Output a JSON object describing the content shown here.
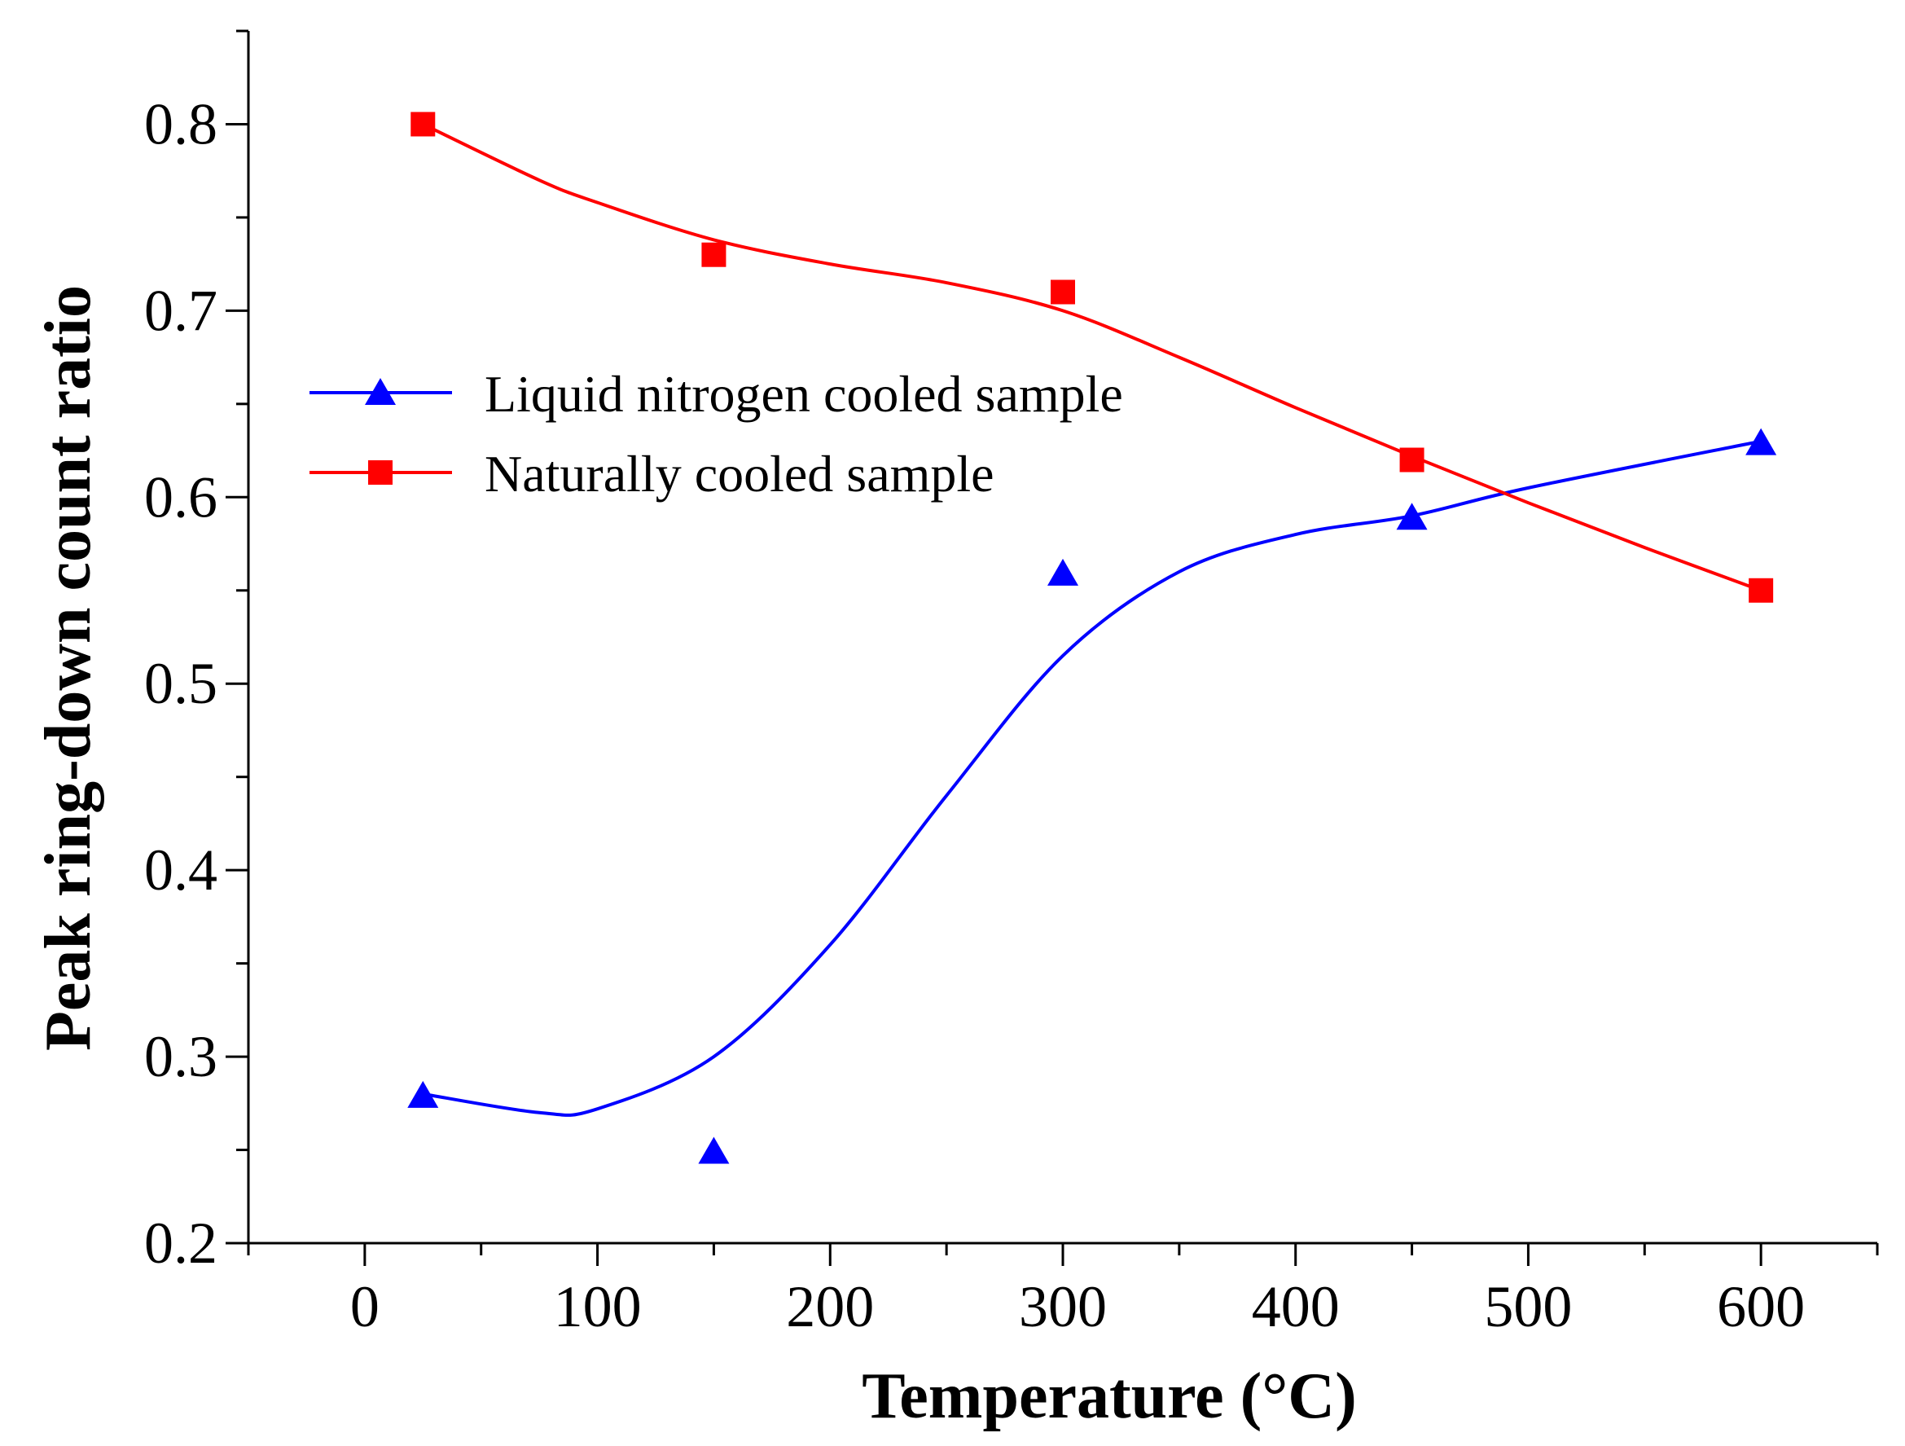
{
  "chart_data": {
    "type": "line",
    "title": "",
    "xlabel": "Temperature (°C)",
    "ylabel": "Peak ring-down count ratio",
    "xlim": [
      -50,
      650
    ],
    "ylim": [
      0.2,
      0.85
    ],
    "xticks": [
      0,
      100,
      200,
      300,
      400,
      500,
      600
    ],
    "xtick_labels": [
      "0",
      "100",
      "200",
      "300",
      "400",
      "500",
      "600"
    ],
    "yticks": [
      0.2,
      0.3,
      0.4,
      0.5,
      0.6,
      0.7,
      0.8
    ],
    "ytick_labels": [
      "0.2",
      "0.3",
      "0.4",
      "0.5",
      "0.6",
      "0.7",
      "0.8"
    ],
    "grid": false,
    "legend_position": "center-left",
    "series": [
      {
        "name": "Liquid nitrogen cooled sample",
        "color": "#0000ff",
        "marker": "triangle",
        "x": [
          25,
          150,
          300,
          450,
          600
        ],
        "y": [
          0.28,
          0.25,
          0.56,
          0.59,
          0.63
        ],
        "fit_curve": [
          [
            25,
            0.28
          ],
          [
            75,
            0.27
          ],
          [
            100,
            0.272
          ],
          [
            150,
            0.3
          ],
          [
            200,
            0.36
          ],
          [
            250,
            0.44
          ],
          [
            300,
            0.515
          ],
          [
            350,
            0.56
          ],
          [
            400,
            0.58
          ],
          [
            450,
            0.59
          ],
          [
            500,
            0.605
          ],
          [
            600,
            0.63
          ]
        ]
      },
      {
        "name": "Naturally cooled sample",
        "color": "#ff0000",
        "marker": "square",
        "x": [
          25,
          150,
          300,
          450,
          600
        ],
        "y": [
          0.8,
          0.73,
          0.71,
          0.62,
          0.55
        ],
        "fit_curve": [
          [
            25,
            0.8
          ],
          [
            75,
            0.77
          ],
          [
            100,
            0.758
          ],
          [
            150,
            0.738
          ],
          [
            200,
            0.725
          ],
          [
            250,
            0.715
          ],
          [
            300,
            0.7
          ],
          [
            350,
            0.675
          ],
          [
            400,
            0.648
          ],
          [
            450,
            0.622
          ],
          [
            500,
            0.597
          ],
          [
            550,
            0.573
          ],
          [
            600,
            0.55
          ]
        ]
      }
    ]
  }
}
